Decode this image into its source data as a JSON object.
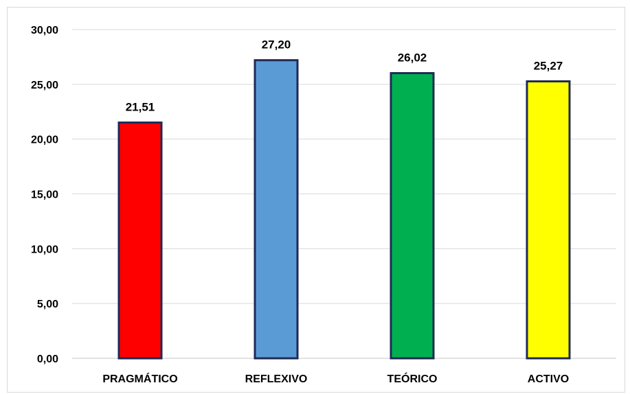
{
  "chart_data": {
    "type": "bar",
    "categories": [
      "PRAGMÁTICO",
      "REFLEXIVO",
      "TEÓRICO",
      "ACTIVO"
    ],
    "values": [
      21.51,
      27.2,
      26.02,
      25.27
    ],
    "value_labels": [
      "21,51",
      "27,20",
      "26,02",
      "25,27"
    ],
    "colors": [
      "#ff0000",
      "#5b9bd5",
      "#00b050",
      "#ffff00"
    ],
    "bar_outline_color": "#1f2a56",
    "ylim": [
      0,
      30
    ],
    "yticks": [
      0,
      5,
      10,
      15,
      20,
      25,
      30
    ],
    "ytick_labels": [
      "0,00",
      "5,00",
      "10,00",
      "15,00",
      "20,00",
      "25,00",
      "30,00"
    ],
    "grid": true,
    "legend": "none"
  }
}
